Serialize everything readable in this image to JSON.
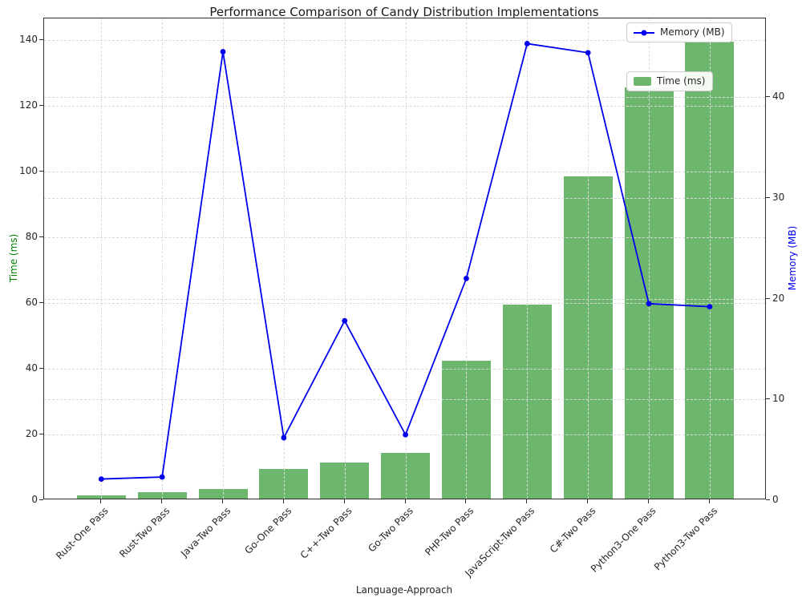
{
  "chart_data": {
    "type": "bar+line",
    "title": "Performance Comparison of Candy Distribution Implementations",
    "xlabel": "Language-Approach",
    "categories": [
      "Rust-One Pass",
      "Rust-Two Pass",
      "Java-Two Pass",
      "Go-One Pass",
      "C++-Two Pass",
      "Go-Two Pass",
      "PHP-Two Pass",
      "JavaScript-Two Pass",
      "C#-Two Pass",
      "Python3-One Pass",
      "Python3-Two Pass"
    ],
    "series": [
      {
        "name": "Time (ms)",
        "type": "bar",
        "axis": "left",
        "color": "#6db66d",
        "values": [
          1,
          2,
          3,
          9,
          11,
          14,
          42,
          59,
          98,
          125,
          139
        ]
      },
      {
        "name": "Memory (MB)",
        "type": "line",
        "axis": "right",
        "color": "#0000ee",
        "values": [
          2.1,
          2.3,
          44.5,
          6.2,
          17.8,
          6.5,
          22.0,
          45.3,
          44.4,
          19.5,
          19.2
        ]
      }
    ],
    "left_axis": {
      "label": "Time (ms)",
      "color": "#008000",
      "ticks": [
        0,
        20,
        40,
        60,
        80,
        100,
        120,
        140
      ],
      "range": [
        0,
        146.5
      ]
    },
    "right_axis": {
      "label": "Memory (MB)",
      "color": "#0000ee",
      "ticks": [
        0,
        10,
        20,
        30,
        40
      ],
      "range": [
        0,
        47.8
      ]
    },
    "grid": {
      "show": true,
      "style": "dashed",
      "color": "#d9d9d9"
    },
    "legend": {
      "position": "upper right",
      "entries": [
        "Memory (MB)",
        "Time (ms)"
      ]
    }
  }
}
